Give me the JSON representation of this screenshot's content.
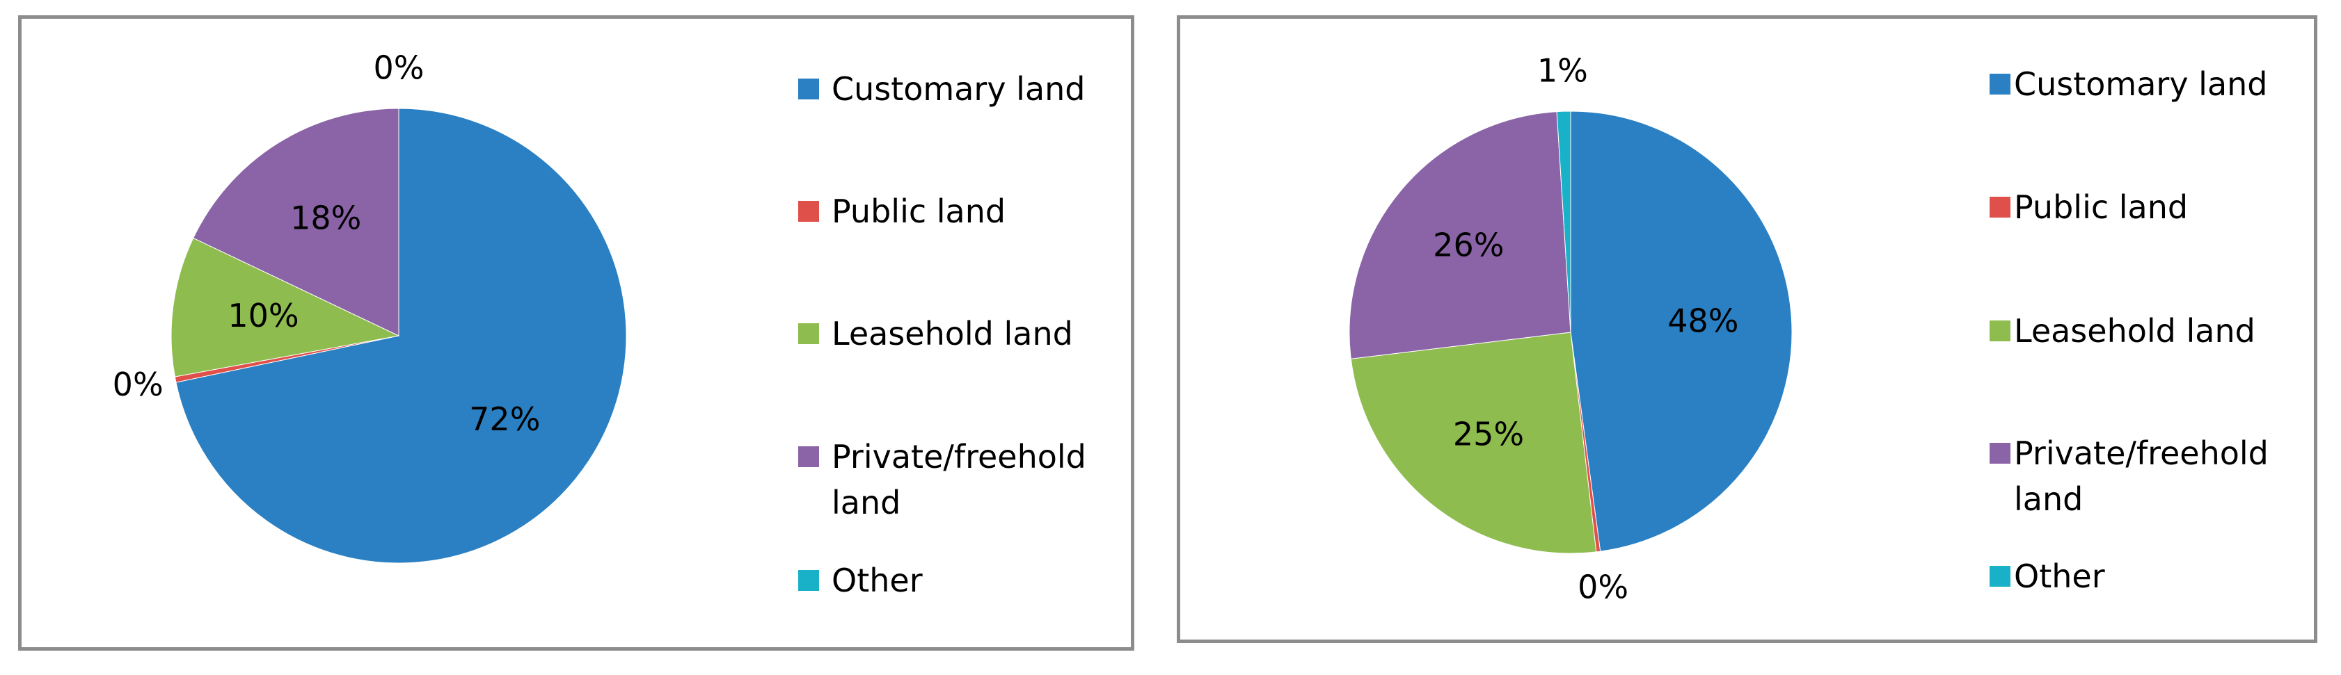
{
  "chart_data": [
    {
      "type": "pie",
      "categories": [
        "Customary land",
        "Public land",
        "Leasehold land",
        "Private/freehold land",
        "Other"
      ],
      "values": [
        72,
        0.4,
        10,
        18,
        0
      ],
      "value_labels": [
        "72%",
        "0%",
        "10%",
        "18%",
        "0%"
      ],
      "colors": [
        "#2a80c3",
        "#e0504a",
        "#8fbc4f",
        "#8a64a6",
        "#19b1c8"
      ]
    },
    {
      "type": "pie",
      "categories": [
        "Customary land",
        "Public land",
        "Leasehold land",
        "Private/freehold land",
        "Other"
      ],
      "values": [
        48,
        0.3,
        25,
        26,
        1
      ],
      "value_labels": [
        "48%",
        "0%",
        "25%",
        "26%",
        "1%"
      ],
      "colors": [
        "#2a80c3",
        "#e0504a",
        "#8fbc4f",
        "#8a64a6",
        "#19b1c8"
      ]
    }
  ]
}
